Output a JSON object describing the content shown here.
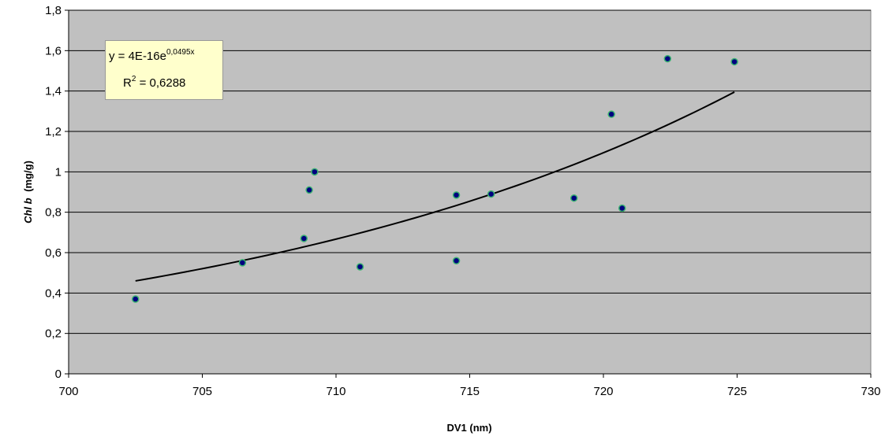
{
  "chart_data": {
    "type": "scatter",
    "xlabel": "DV1 (nm)",
    "ylabel_italic": "Chl b",
    "ylabel_unit": "(mg/g)",
    "xlim": [
      700,
      730
    ],
    "ylim": [
      0,
      1.8
    ],
    "xticks": [
      700,
      705,
      710,
      715,
      720,
      725,
      730
    ],
    "yticks": [
      0,
      0.2,
      0.4,
      0.6,
      0.8,
      1.0,
      1.2,
      1.4,
      1.6,
      1.8
    ],
    "xtick_labels": [
      "700",
      "705",
      "710",
      "715",
      "720",
      "725",
      "730"
    ],
    "ytick_labels": [
      "0",
      "0,2",
      "0,4",
      "0,6",
      "0,8",
      "1",
      "1,2",
      "1,4",
      "1,6",
      "1,8"
    ],
    "grid": "horizontal",
    "colors": {
      "plot_bg": "#c0c0c0",
      "marker_fill": "#000080",
      "marker_edge": "#3cb371",
      "trendline": "#000000",
      "equation_box": "#ffffcc"
    },
    "points": [
      {
        "x": 702.5,
        "y": 0.37
      },
      {
        "x": 706.5,
        "y": 0.55
      },
      {
        "x": 708.8,
        "y": 0.67
      },
      {
        "x": 709.0,
        "y": 0.91
      },
      {
        "x": 709.2,
        "y": 1.0
      },
      {
        "x": 710.9,
        "y": 0.53
      },
      {
        "x": 714.5,
        "y": 0.885
      },
      {
        "x": 714.5,
        "y": 0.56
      },
      {
        "x": 715.8,
        "y": 0.89
      },
      {
        "x": 718.9,
        "y": 0.87
      },
      {
        "x": 720.3,
        "y": 1.285
      },
      {
        "x": 720.7,
        "y": 0.82
      },
      {
        "x": 722.4,
        "y": 1.56
      },
      {
        "x": 724.9,
        "y": 1.545
      }
    ],
    "trendline": {
      "type": "exponential",
      "x_range": [
        702.5,
        724.9
      ],
      "y_start": 0.46,
      "y_end": 1.395,
      "equation_prefix": "y = 4E-16e",
      "equation_exponent": "0,0495x",
      "r2_prefix": "R",
      "r2_exponent": "2",
      "r2_value": " = 0,6288"
    }
  }
}
